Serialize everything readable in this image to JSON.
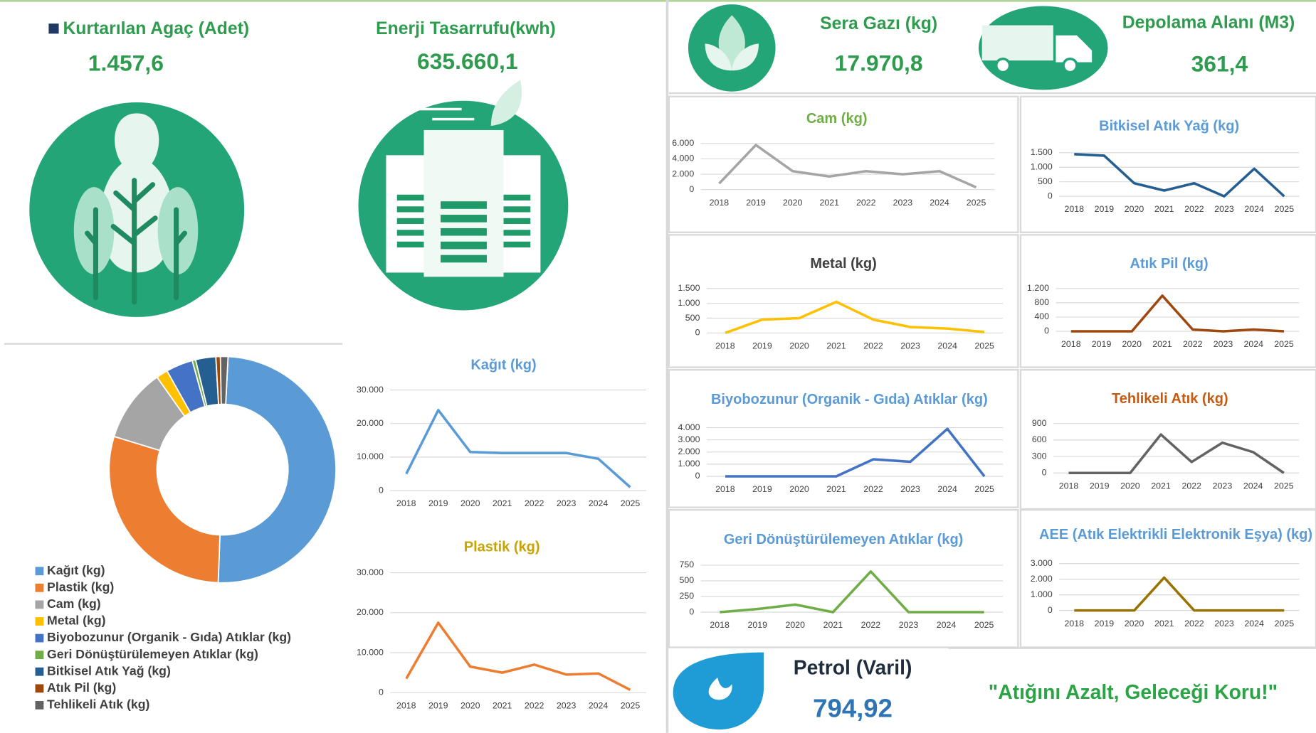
{
  "kpis": {
    "trees": {
      "label": "Kurtarılan Agaç (Adet)",
      "value": "1.457,6"
    },
    "energy": {
      "label": "Enerji Tasarrufu(kwh)",
      "value": "635.660,1"
    },
    "greenhouse": {
      "label": "Sera Gazı (kg)",
      "value": "17.970,8"
    },
    "storage": {
      "label": "Depolama Alanı (M3)",
      "value": "361,4"
    },
    "oil": {
      "label": "Petrol (Varil)",
      "value": "794,92"
    }
  },
  "slogan": "\"Atığını Azalt, Geleceği Koru!\"",
  "chart_data": [
    {
      "type": "donut",
      "categories": [
        "Kağıt (kg)",
        "Plastik (kg)",
        "Cam (kg)",
        "Metal (kg)",
        "Biyobozunur (Organik - Gıda) Atıklar (kg)",
        "Geri Dönüştürülemeyen  Atıklar (kg)",
        "Bitkisel Atık Yağ (kg)",
        "Atık Pil (kg)",
        "Tehlikeli Atık (kg)"
      ],
      "values": [
        84600,
        49500,
        17800,
        2830,
        6500,
        820,
        4900,
        1100,
        1830
      ],
      "colors": [
        "#5b9bd5",
        "#ed7d31",
        "#a5a5a5",
        "#ffc000",
        "#4472c4",
        "#70ad47",
        "#255e91",
        "#9e480e",
        "#636363"
      ]
    },
    {
      "type": "line",
      "title": "Kağıt (kg)",
      "title_color": "#5b9bd5",
      "color": "#5b9bd5",
      "categories": [
        "2018",
        "2019",
        "2020",
        "2021",
        "2022",
        "2023",
        "2024",
        "2025"
      ],
      "values": [
        5000,
        24000,
        11500,
        11200,
        11200,
        11200,
        9500,
        1000
      ],
      "ylim": [
        0,
        30000
      ],
      "yticks": [
        0,
        {
          "value": 10000,
          "label": "10.000"
        },
        {
          "value": 20000,
          "label": "20.000"
        },
        {
          "value": 30000,
          "label": "30.000"
        }
      ],
      "grid": true
    },
    {
      "type": "line",
      "title": "Plastik (kg)",
      "title_color": "#c9a400",
      "color": "#ed7d31",
      "categories": [
        "2018",
        "2019",
        "2020",
        "2021",
        "2022",
        "2023",
        "2024",
        "2025"
      ],
      "values": [
        3500,
        17500,
        6500,
        5000,
        7000,
        4500,
        4800,
        700
      ],
      "ylim": [
        0,
        30000
      ],
      "yticks": [
        0,
        {
          "value": 10000,
          "label": "10.000"
        },
        {
          "value": 20000,
          "label": "20.000"
        },
        {
          "value": 30000,
          "label": "30.000"
        }
      ],
      "grid": true
    },
    {
      "type": "line",
      "title": "Cam (kg)",
      "title_color": "#70ad47",
      "color": "#a5a5a5",
      "categories": [
        "2018",
        "2019",
        "2020",
        "2021",
        "2022",
        "2023",
        "2024",
        "2025"
      ],
      "values": [
        800,
        5800,
        2400,
        1700,
        2400,
        2000,
        2400,
        300
      ],
      "ylim": [
        0,
        6000
      ],
      "yticks": [
        0,
        {
          "value": 2000,
          "label": "2.000"
        },
        {
          "value": 4000,
          "label": "4.000"
        },
        {
          "value": 6000,
          "label": "6.000"
        }
      ],
      "grid": true
    },
    {
      "type": "line",
      "title": "Bitkisel Atık Yağ (kg)",
      "title_color": "#5b9bd5",
      "color": "#255e91",
      "categories": [
        "2018",
        "2019",
        "2020",
        "2021",
        "2022",
        "2023",
        "2024",
        "2025"
      ],
      "values": [
        1450,
        1400,
        450,
        200,
        450,
        0,
        950,
        0
      ],
      "ylim": [
        0,
        1500
      ],
      "yticks": [
        0,
        500,
        {
          "value": 1000,
          "label": "1.000"
        },
        {
          "value": 1500,
          "label": "1.500"
        }
      ],
      "grid": true
    },
    {
      "type": "line",
      "title": "Metal (kg)",
      "title_color": "#404040",
      "color": "#ffc000",
      "categories": [
        "2018",
        "2019",
        "2020",
        "2021",
        "2022",
        "2023",
        "2024",
        "2025"
      ],
      "values": [
        0,
        450,
        500,
        1050,
        450,
        200,
        150,
        30
      ],
      "ylim": [
        0,
        1500
      ],
      "yticks": [
        0,
        500,
        {
          "value": 1000,
          "label": "1.000"
        },
        {
          "value": 1500,
          "label": "1.500"
        }
      ],
      "grid": true
    },
    {
      "type": "line",
      "title": "Atık Pil (kg)",
      "title_color": "#5b9bd5",
      "color": "#9e480e",
      "categories": [
        "2018",
        "2019",
        "2020",
        "2021",
        "2022",
        "2023",
        "2024",
        "2025"
      ],
      "values": [
        0,
        0,
        0,
        1000,
        50,
        0,
        50,
        0
      ],
      "ylim": [
        0,
        1200
      ],
      "yticks": [
        0,
        400,
        800,
        {
          "value": 1200,
          "label": "1.200"
        }
      ],
      "grid": true
    },
    {
      "type": "line",
      "title": "Biyobozunur (Organik - Gıda) Atıklar (kg)",
      "title_color": "#5b9bd5",
      "color": "#4472c4",
      "categories": [
        "2018",
        "2019",
        "2020",
        "2021",
        "2022",
        "2023",
        "2024",
        "2025"
      ],
      "values": [
        0,
        0,
        0,
        0,
        1400,
        1200,
        3900,
        0
      ],
      "ylim": [
        0,
        4000
      ],
      "yticks": [
        0,
        {
          "value": 1000,
          "label": "1.000"
        },
        {
          "value": 2000,
          "label": "2.000"
        },
        {
          "value": 3000,
          "label": "3.000"
        },
        {
          "value": 4000,
          "label": "4.000"
        }
      ],
      "grid": true
    },
    {
      "type": "line",
      "title": "Tehlikeli Atık (kg)",
      "title_color": "#c55a11",
      "color": "#636363",
      "categories": [
        "2018",
        "2019",
        "2020",
        "2021",
        "2022",
        "2023",
        "2024",
        "2025"
      ],
      "values": [
        0,
        0,
        0,
        700,
        200,
        550,
        380,
        0
      ],
      "ylim": [
        0,
        900
      ],
      "yticks": [
        0,
        300,
        600,
        900
      ],
      "grid": true
    },
    {
      "type": "line",
      "title": "Geri Dönüştürülemeyen  Atıklar (kg)",
      "title_color": "#5b9bd5",
      "color": "#70ad47",
      "categories": [
        "2018",
        "2019",
        "2020",
        "2021",
        "2022",
        "2023",
        "2024",
        "2025"
      ],
      "values": [
        0,
        50,
        120,
        0,
        650,
        0,
        0,
        0
      ],
      "ylim": [
        0,
        750
      ],
      "yticks": [
        0,
        250,
        500,
        750
      ],
      "grid": true
    },
    {
      "type": "line",
      "title": "AEE (Atık Elektrikli Elektronik Eşya) (kg)",
      "title_color": "#5b9bd5",
      "color": "#997300",
      "categories": [
        "2018",
        "2019",
        "2020",
        "2021",
        "2022",
        "2023",
        "2024",
        "2025"
      ],
      "values": [
        0,
        0,
        0,
        2100,
        0,
        0,
        0,
        0
      ],
      "ylim": [
        0,
        3000
      ],
      "yticks": [
        0,
        {
          "value": 1000,
          "label": "1.000"
        },
        {
          "value": 2000,
          "label": "2.000"
        },
        {
          "value": 3000,
          "label": "3.000"
        }
      ],
      "grid": true
    }
  ]
}
